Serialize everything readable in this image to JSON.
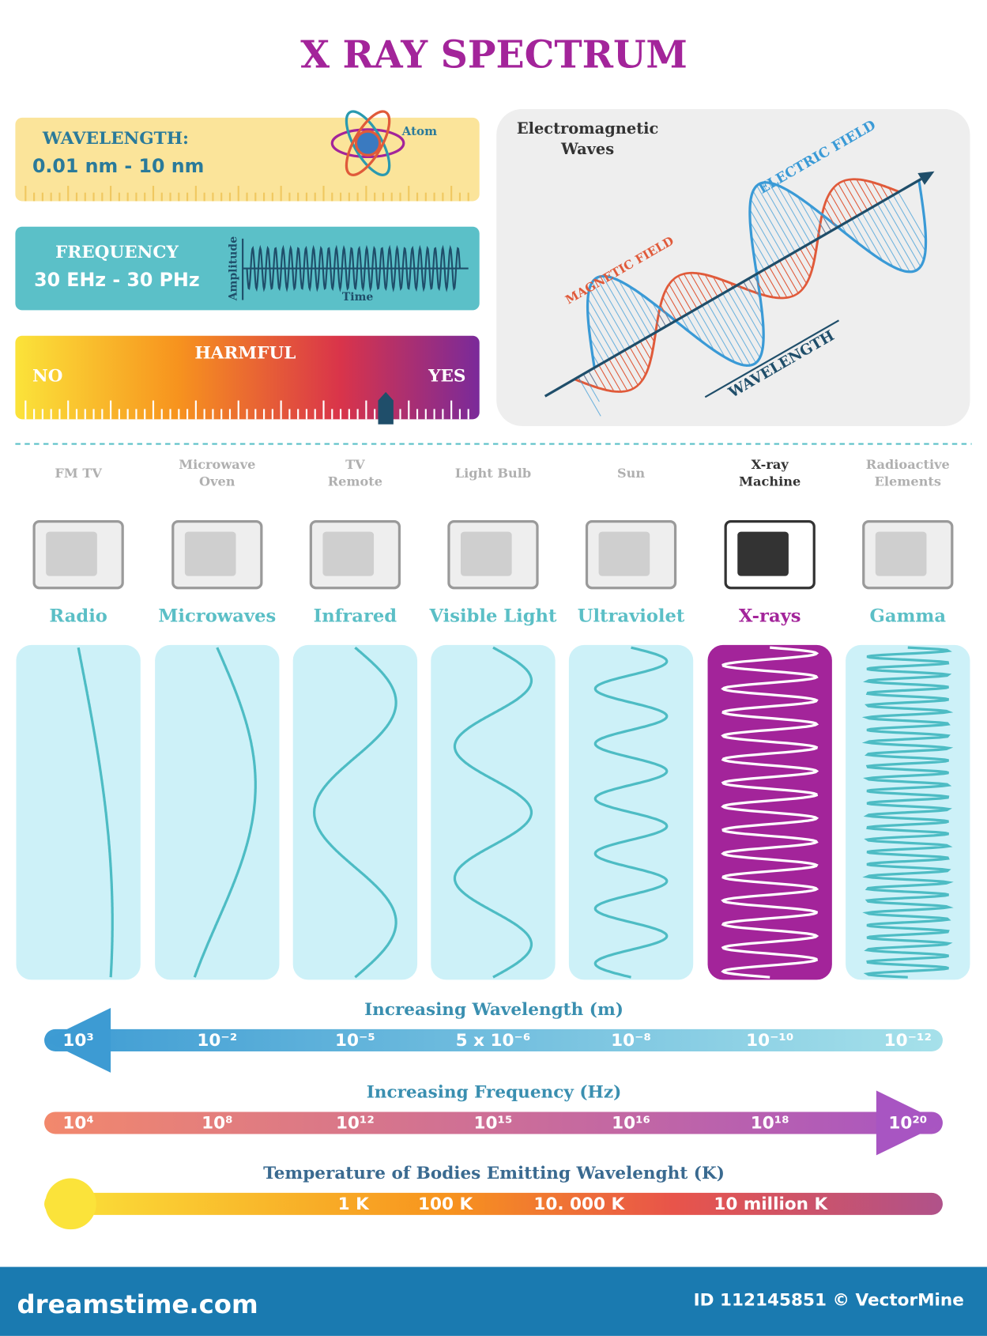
{
  "header": {
    "title": "X RAY SPECTRUM"
  },
  "wavelength": {
    "label": "WAVELENGTH:",
    "range": "0.01 nm - 10 nm",
    "icon_label": "Atom"
  },
  "frequency": {
    "label": "FREQUENCY",
    "range": "30 EHz - 30 PHz",
    "y_axis": "Amplitude",
    "x_axis": "Time"
  },
  "harmful": {
    "label": "HARMFUL",
    "low": "NO",
    "high": "YES"
  },
  "em_waves": {
    "title_lines": [
      "Electromagnetic",
      "Waves"
    ],
    "electric": "ELECTRIC FIELD",
    "magnetic": "MAGNETIC FIELD",
    "wavelength": "WAVELENGTH"
  },
  "spectrum": [
    {
      "source_lines": [
        "FM  TV"
      ],
      "name": "Radio"
    },
    {
      "source_lines": [
        "Microwave",
        "Oven"
      ],
      "name": "Microwaves"
    },
    {
      "source_lines": [
        "TV",
        "Remote"
      ],
      "name": "Infrared"
    },
    {
      "source_lines": [
        "Light Bulb"
      ],
      "name": "Visible Light"
    },
    {
      "source_lines": [
        "Sun"
      ],
      "name": "Ultraviolet"
    },
    {
      "source_lines": [
        "X-ray",
        "Machine"
      ],
      "name": "X-rays"
    },
    {
      "source_lines": [
        "Radioactive",
        "Elements"
      ],
      "name": "Gamma"
    }
  ],
  "scales": [
    {
      "title": "Increasing Wavelength (m)",
      "labels": [
        "10³",
        "10⁻²",
        "10⁻⁵",
        "5 x 10⁻⁶",
        "10⁻⁸",
        "10⁻¹⁰",
        "10⁻¹²"
      ]
    },
    {
      "title": "Increasing Frequency (Hz)",
      "labels": [
        "10⁴",
        "10⁸",
        "10¹²",
        "10¹⁵",
        "10¹⁶",
        "10¹⁸",
        "10²⁰"
      ]
    },
    {
      "title": "Temperature of Bodies Emitting Wavelenght (K)",
      "labels": [
        "1 K",
        "100 K",
        "10. 000 K",
        "10 million K"
      ]
    }
  ],
  "footer": {
    "brand": "dreamstime.com",
    "id": "ID 112145851 © VectorMine"
  }
}
